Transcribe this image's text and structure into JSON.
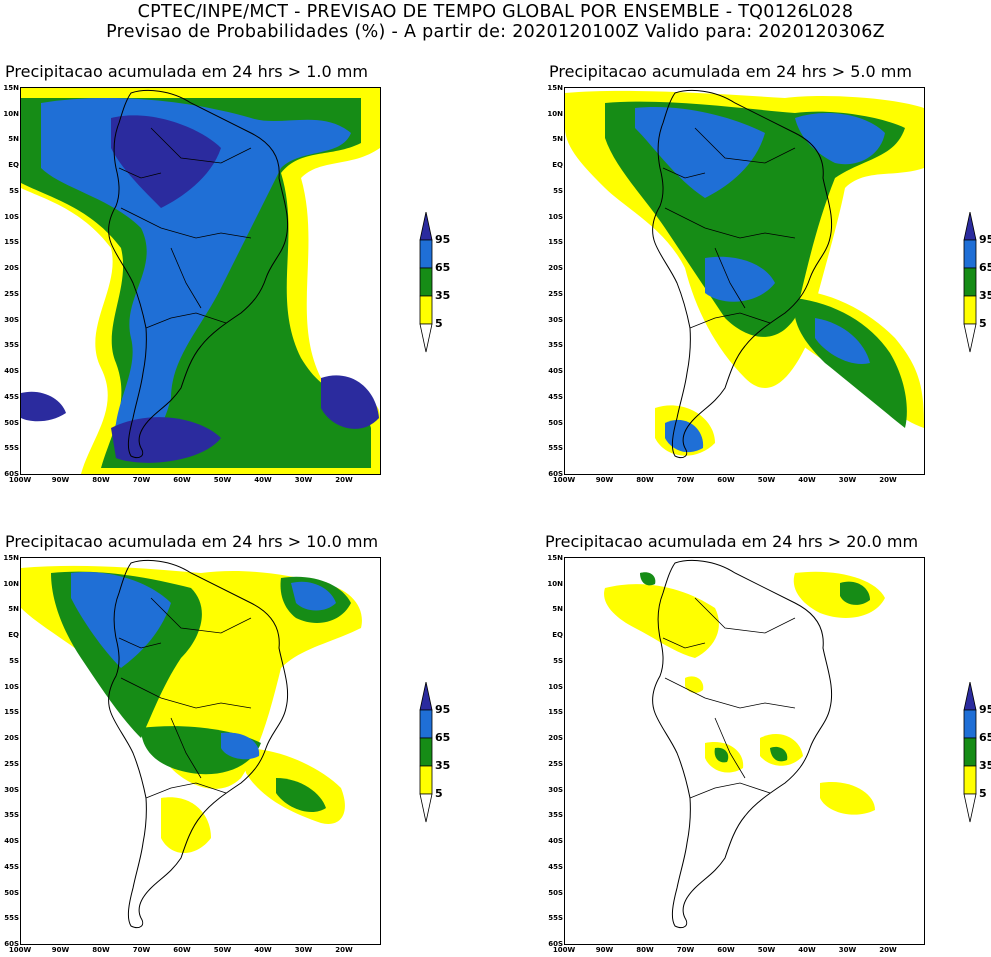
{
  "header": {
    "line1": "CPTEC/INPE/MCT - PREVISAO DE TEMPO GLOBAL POR ENSEMBLE - TQ0126L028",
    "line2": "Previsao de Probabilidades (%) -  A partir de: 2020120100Z  Valido para: 2020120306Z"
  },
  "latitude_labels": [
    "15N",
    "10N",
    "5N",
    "EQ",
    "5S",
    "10S",
    "15S",
    "20S",
    "25S",
    "30S",
    "35S",
    "40S",
    "45S",
    "50S",
    "55S",
    "60S"
  ],
  "longitude_labels": [
    "100W",
    "90W",
    "80W",
    "70W",
    "60W",
    "50W",
    "40W",
    "30W",
    "20W"
  ],
  "colorbar": {
    "levels": [
      "95",
      "65",
      "35",
      "5"
    ],
    "colors": {
      "c95": "#2b2b9e",
      "c65": "#1f6fd6",
      "c35": "#168c16",
      "c5": "#ffff00",
      "none": "#ffffff"
    }
  },
  "panels": [
    {
      "title": "Precipitacao acumulada em 24 hrs > 1.0 mm"
    },
    {
      "title": "Precipitacao acumulada em 24 hrs > 5.0 mm"
    },
    {
      "title": "Precipitacao acumulada em 24 hrs > 10.0 mm"
    },
    {
      "title": "Precipitacao acumulada em 24 hrs > 20.0 mm"
    }
  ]
}
